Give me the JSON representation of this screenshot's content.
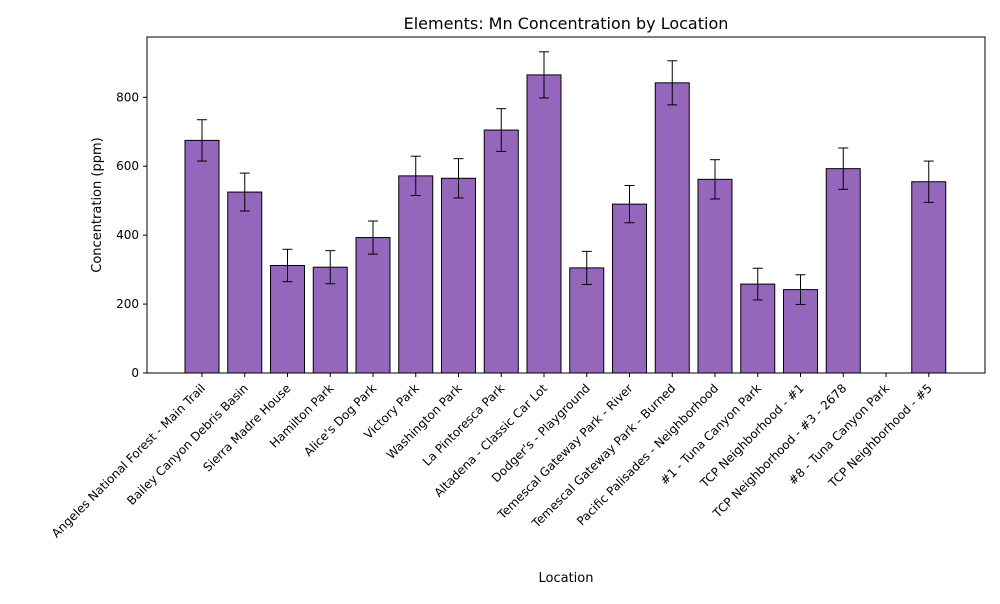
{
  "chart_data": {
    "type": "bar",
    "title": "Elements: Mn Concentration by Location",
    "xlabel": "Location",
    "ylabel": "Concentration (ppm)",
    "ylim": [
      0,
      975
    ],
    "yticks": [
      0,
      200,
      400,
      600,
      800
    ],
    "grid": false,
    "bar_color": "#9467bd",
    "edge_color": "#000000",
    "categories": [
      "Angeles National Forest - Main Trail",
      "Bailey Canyon Debris Basin",
      "Sierra Madre House",
      "Hamilton Park",
      "Alice's Dog Park",
      "Victory Park",
      "Washington Park",
      "La Pintoresca Park",
      "Altadena - Classic Car Lot",
      "Dodger's - Playground",
      "Temescal Gateway Park - River",
      "Temescal Gateway Park - Burned",
      "Pacific Palisades - Neighborhood",
      "#1 - Tuna Canyon Park",
      "TCP Neighborhood - #1",
      "TCP Neighborhood - #3 - 2678",
      "#8 - Tuna Canyon Park",
      "TCP Neighborhood - #5"
    ],
    "values": [
      675,
      525,
      312,
      307,
      393,
      572,
      565,
      705,
      865,
      305,
      490,
      842,
      562,
      258,
      242,
      593,
      null,
      555
    ],
    "errors": [
      60,
      55,
      47,
      48,
      48,
      57,
      57,
      62,
      67,
      48,
      54,
      64,
      57,
      46,
      43,
      60,
      null,
      60
    ]
  }
}
